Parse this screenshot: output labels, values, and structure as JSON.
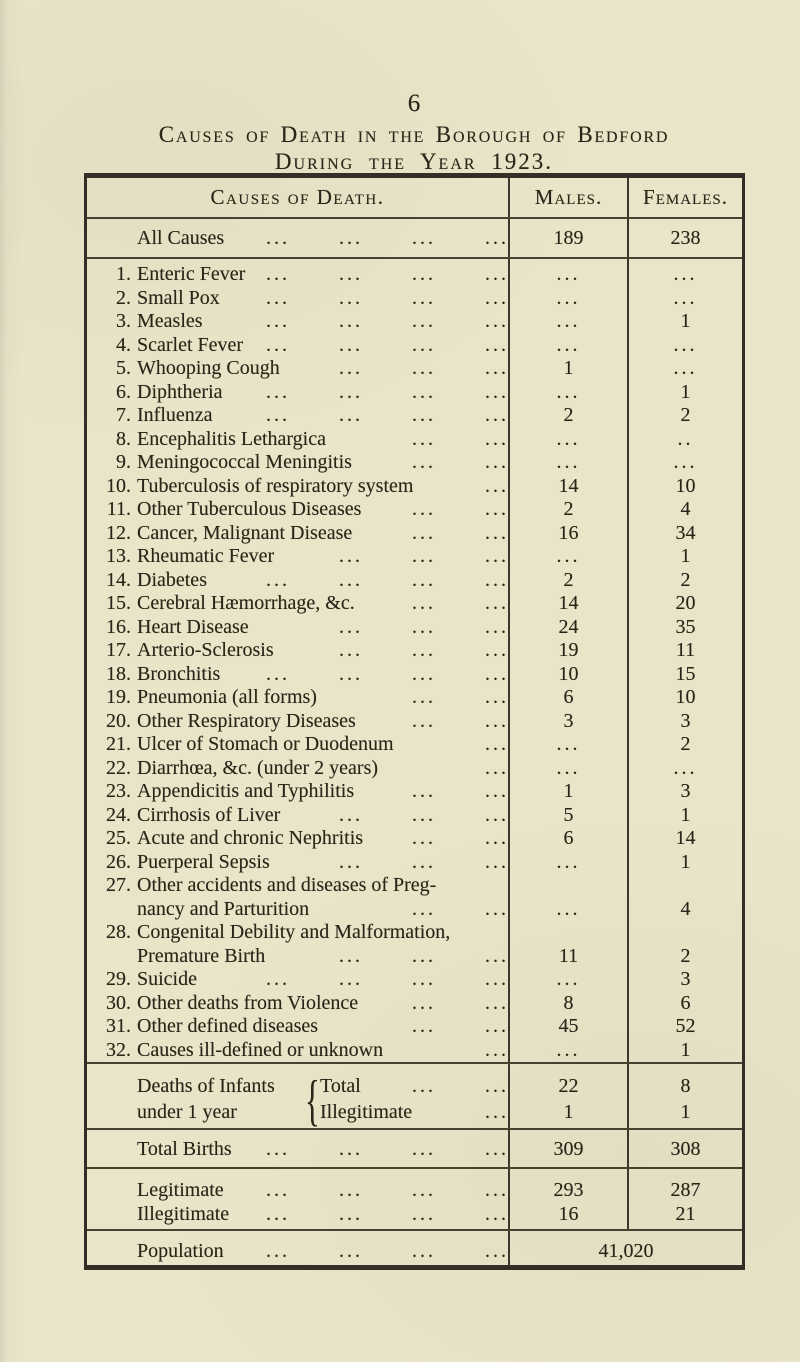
{
  "page": {
    "number": "6",
    "title_line1": "Causes of Death in the Borough of Bedford",
    "title_line2": "During the Year 1923."
  },
  "table": {
    "headers": {
      "cause": "Causes of Death.",
      "males": "Males.",
      "females": "Females."
    },
    "all_causes": {
      "label": "All Causes",
      "dots": 4,
      "males": "189",
      "females": "238"
    },
    "rows": [
      {
        "no": "1.",
        "label": "Enteric Fever",
        "dots": 4,
        "males": "...",
        "females": "..."
      },
      {
        "no": "2.",
        "label": "Small Pox",
        "dots": 4,
        "males": "...",
        "females": "..."
      },
      {
        "no": "3.",
        "label": "Measles",
        "dots": 4,
        "males": "...",
        "females": "1"
      },
      {
        "no": "4.",
        "label": "Scarlet Fever",
        "dots": 4,
        "males": "...",
        "females": "..."
      },
      {
        "no": "5.",
        "label": "Whooping Cough",
        "dots": 3,
        "males": "1",
        "females": "..."
      },
      {
        "no": "6.",
        "label": "Diphtheria",
        "dots": 4,
        "males": "...",
        "females": "1"
      },
      {
        "no": "7.",
        "label": "Influenza",
        "dots": 4,
        "males": "2",
        "females": "2"
      },
      {
        "no": "8.",
        "label": "Encephalitis Lethargica",
        "dots": 2,
        "males": "...",
        "females": ".."
      },
      {
        "no": "9.",
        "label": "Meningococcal Meningitis",
        "dots": 2,
        "males": "...",
        "females": "..."
      },
      {
        "no": "10.",
        "label": "Tuberculosis of respiratory system",
        "dots": 1,
        "males": "14",
        "females": "10"
      },
      {
        "no": "11.",
        "label": "Other Tuberculous Diseases",
        "dots": 2,
        "males": "2",
        "females": "4"
      },
      {
        "no": "12.",
        "label": "Cancer, Malignant Disease",
        "dots": 2,
        "males": "16",
        "females": "34"
      },
      {
        "no": "13.",
        "label": "Rheumatic Fever",
        "dots": 3,
        "males": "...",
        "females": "1"
      },
      {
        "no": "14.",
        "label": "Diabetes",
        "dots": 4,
        "males": "2",
        "females": "2"
      },
      {
        "no": "15.",
        "label": "Cerebral Hæmorrhage, &c.",
        "dots": 2,
        "males": "14",
        "females": "20"
      },
      {
        "no": "16.",
        "label": "Heart Disease",
        "dots": 3,
        "males": "24",
        "females": "35"
      },
      {
        "no": "17.",
        "label": "Arterio-Sclerosis",
        "dots": 3,
        "males": "19",
        "females": "11"
      },
      {
        "no": "18.",
        "label": "Bronchitis",
        "dots": 4,
        "males": "10",
        "females": "15"
      },
      {
        "no": "19.",
        "label": "Pneumonia (all forms)",
        "dots": 2,
        "males": "6",
        "females": "10"
      },
      {
        "no": "20.",
        "label": "Other Respiratory Diseases",
        "dots": 2,
        "males": "3",
        "females": "3"
      },
      {
        "no": "21.",
        "label": "Ulcer of Stomach or Duodenum",
        "dots": 1,
        "males": "...",
        "females": "2"
      },
      {
        "no": "22.",
        "label": "Diarrhœa, &c. (under 2 years)",
        "dots": 1,
        "males": "...",
        "females": "..."
      },
      {
        "no": "23.",
        "label": "Appendicitis and Typhilitis",
        "dots": 2,
        "males": "1",
        "females": "3"
      },
      {
        "no": "24.",
        "label": "Cirrhosis of Liver",
        "dots": 3,
        "males": "5",
        "females": "1"
      },
      {
        "no": "25.",
        "label": "Acute and chronic Nephritis",
        "dots": 2,
        "males": "6",
        "females": "14"
      },
      {
        "no": "26.",
        "label": "Puerperal Sepsis",
        "dots": 3,
        "males": "...",
        "females": "1"
      },
      {
        "no": "27.",
        "label": "Other accidents and diseases of Preg-",
        "dots": 0,
        "males": "",
        "females": ""
      },
      {
        "no": "",
        "label": "nancy and Parturition",
        "cont": true,
        "dots": 2,
        "males": "...",
        "females": "4"
      },
      {
        "no": "28.",
        "label": "Congenital Debility and Malformation,",
        "dots": 0,
        "males": "",
        "females": ""
      },
      {
        "no": "",
        "label": "Premature Birth",
        "cont": true,
        "dots": 3,
        "males": "11",
        "females": "2"
      },
      {
        "no": "29.",
        "label": "Suicide",
        "dots": 4,
        "males": "...",
        "females": "3"
      },
      {
        "no": "30.",
        "label": "Other deaths from Violence",
        "dots": 2,
        "males": "8",
        "females": "6"
      },
      {
        "no": "31.",
        "label": "Other defined diseases",
        "dots": 2,
        "males": "45",
        "females": "52"
      },
      {
        "no": "32.",
        "label": "Causes ill-defined or unknown",
        "dots": 1,
        "males": "...",
        "females": "1"
      }
    ],
    "infant_deaths": {
      "label_line1": "Deaths of Infants",
      "label_line2": "under 1 year",
      "sub_rows": [
        {
          "label": "Total",
          "dots": 2,
          "males": "22",
          "females": "8"
        },
        {
          "label": "Illegitimate",
          "dots": 1,
          "males": "1",
          "females": "1"
        }
      ]
    },
    "total_births": {
      "label": "Total Births",
      "dots": 4,
      "males": "309",
      "females": "308"
    },
    "legitimacy_rows": [
      {
        "label": "Legitimate",
        "dots": 4,
        "males": "293",
        "females": "287"
      },
      {
        "label": "Illegitimate",
        "dots": 4,
        "males": "16",
        "females": "21"
      }
    ],
    "population": {
      "label": "Population",
      "dots": 4,
      "value": "41,020"
    }
  }
}
